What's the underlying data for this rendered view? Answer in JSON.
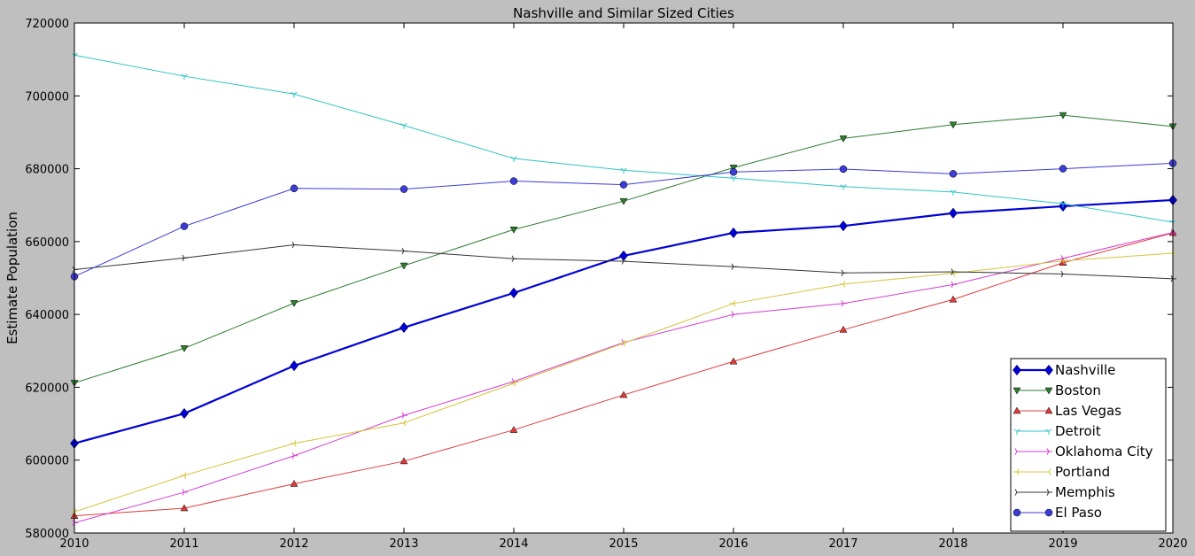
{
  "chart_data": {
    "type": "line",
    "title": "Nashville and Similar Sized Cities",
    "xlabel": "",
    "ylabel": "Estimate Population",
    "x": [
      2010,
      2011,
      2012,
      2013,
      2014,
      2015,
      2016,
      2017,
      2018,
      2019,
      2020
    ],
    "xlim": [
      2010,
      2020
    ],
    "ylim": [
      580000,
      720000
    ],
    "yticks": [
      580000,
      600000,
      620000,
      640000,
      660000,
      680000,
      700000,
      720000
    ],
    "grid": false,
    "legend_position": "lower-right",
    "series": [
      {
        "name": "Nashville",
        "color": "#0000d6",
        "marker": "diamond",
        "bold": true,
        "values": [
          604600,
          612800,
          625900,
          636400,
          645900,
          656100,
          662400,
          664300,
          667800,
          669700,
          671400
        ]
      },
      {
        "name": "Boston",
        "color": "#2e7d2e",
        "marker": "triangle-down",
        "values": [
          621200,
          630700,
          643100,
          653400,
          663300,
          671100,
          680300,
          688300,
          692100,
          694700,
          691600
        ]
      },
      {
        "name": "Las Vegas",
        "color": "#e03c3c",
        "marker": "triangle-up",
        "values": [
          584700,
          586800,
          593500,
          599700,
          608300,
          617900,
          627100,
          635800,
          644100,
          654200,
          662400
        ]
      },
      {
        "name": "Detroit",
        "color": "#2ec4c4",
        "marker": "tri-down",
        "values": [
          711200,
          705400,
          700500,
          691900,
          682800,
          679600,
          677400,
          675100,
          673600,
          670400,
          665300
        ]
      },
      {
        "name": "Oklahoma City",
        "color": "#d43cd4",
        "marker": "tri-right",
        "values": [
          582800,
          591200,
          601200,
          612300,
          621600,
          632300,
          640000,
          643000,
          648200,
          655400,
          662500
        ]
      },
      {
        "name": "Portland",
        "color": "#d6c43c",
        "marker": "tri-left",
        "values": [
          585800,
          595800,
          604600,
          610200,
          621100,
          632100,
          643000,
          648300,
          651300,
          654700,
          656800
        ]
      },
      {
        "name": "Memphis",
        "color": "#333333",
        "marker": "tri-right",
        "values": [
          652300,
          655500,
          659100,
          657400,
          655300,
          654600,
          653100,
          651400,
          651700,
          651100,
          649800
        ]
      },
      {
        "name": "El Paso",
        "color": "#3c3cd6",
        "marker": "circle",
        "values": [
          650400,
          664200,
          674600,
          674400,
          676600,
          675600,
          679100,
          679900,
          678600,
          680000,
          681500
        ]
      }
    ]
  }
}
